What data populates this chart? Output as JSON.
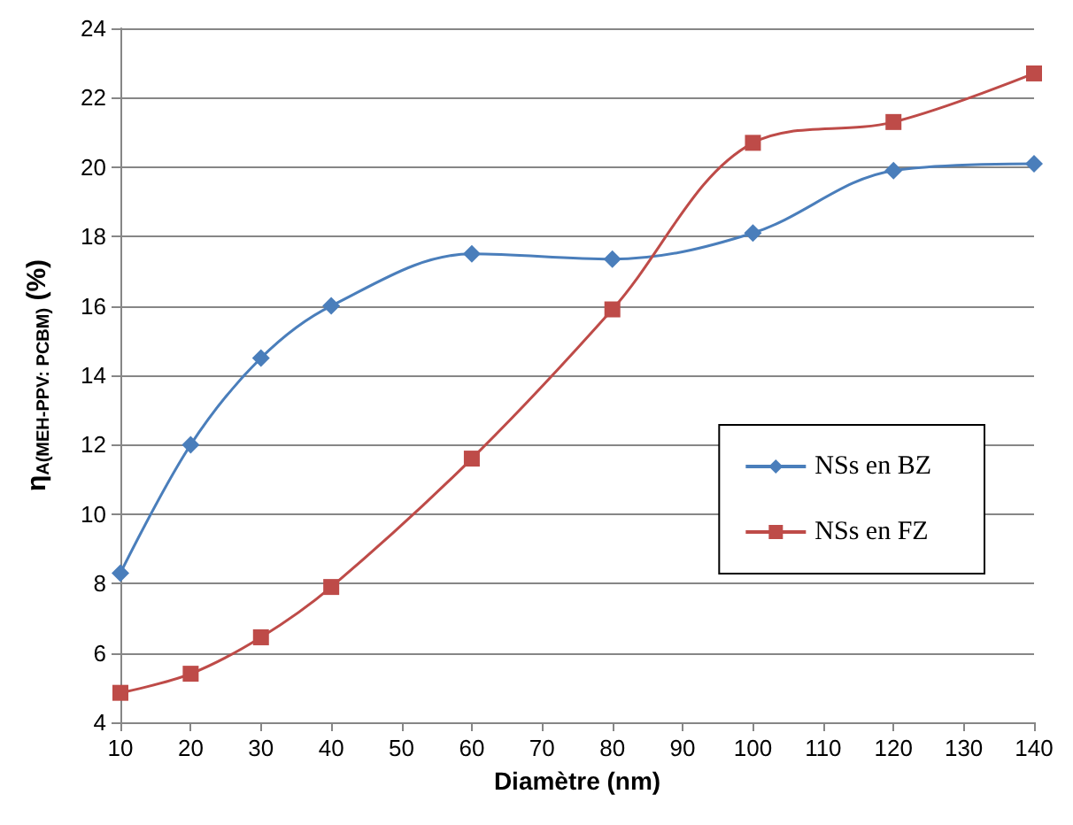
{
  "chart_data": {
    "type": "line",
    "xlabel": "Diamètre (nm)",
    "ylabel": "η$_{A(MEH-PPV: PCBM)}$ (%)",
    "xlim": [
      10,
      140
    ],
    "xticks": [
      10,
      20,
      30,
      40,
      50,
      60,
      70,
      80,
      90,
      100,
      110,
      120,
      130,
      140
    ],
    "ylim": [
      4,
      24
    ],
    "yticks": [
      4,
      6,
      8,
      10,
      12,
      14,
      16,
      18,
      20,
      22,
      24
    ],
    "grid": "y",
    "legend": "right",
    "series": [
      {
        "name": "NSs en BZ",
        "color": "#4a7ebb",
        "marker": "diamond",
        "x": [
          10,
          20,
          30,
          40,
          60,
          80,
          100,
          120,
          140
        ],
        "values": [
          8.3,
          12.0,
          14.5,
          16.0,
          17.5,
          17.35,
          18.1,
          19.9,
          20.1
        ]
      },
      {
        "name": "NSs en FZ",
        "color": "#be4b48",
        "marker": "square",
        "x": [
          10,
          20,
          30,
          40,
          60,
          80,
          100,
          120,
          140
        ],
        "values": [
          4.85,
          5.4,
          6.45,
          7.9,
          11.6,
          15.9,
          20.7,
          21.3,
          22.7
        ]
      }
    ]
  }
}
